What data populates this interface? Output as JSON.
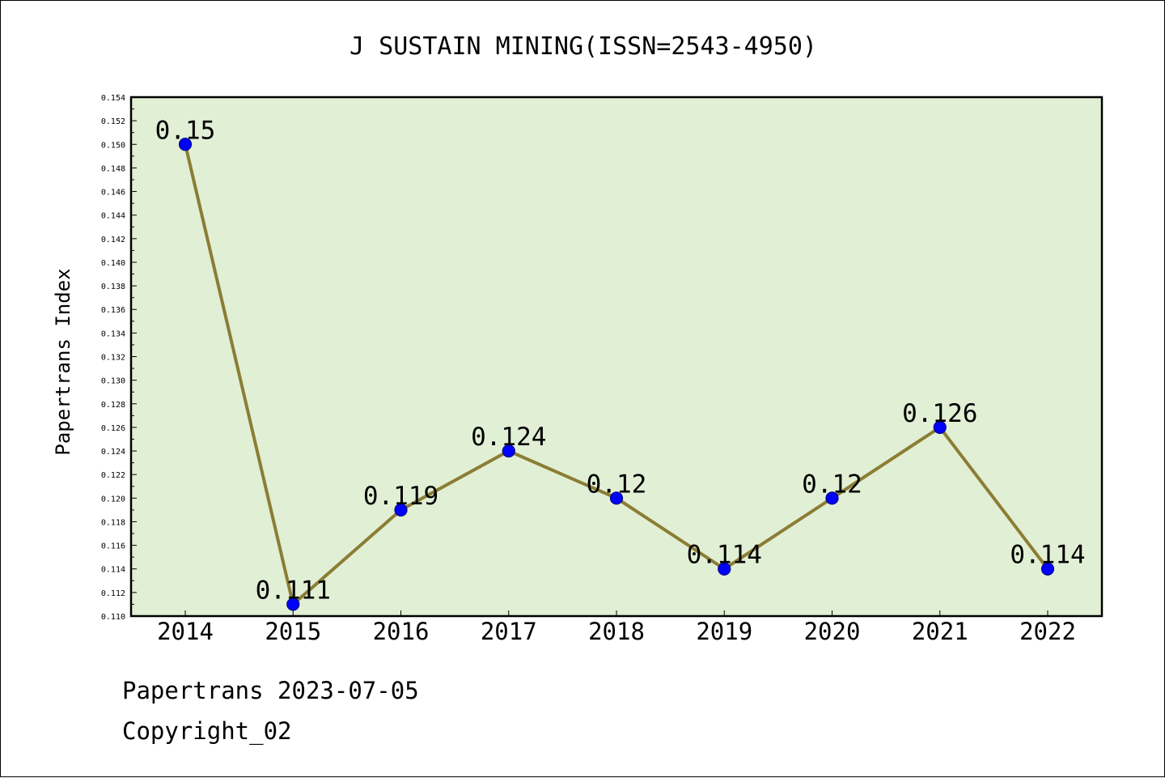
{
  "chart_data": {
    "type": "line",
    "title": "J SUSTAIN MINING(ISSN=2543-4950)",
    "xlabel": "",
    "ylabel": "Papertrans Index",
    "categories": [
      "2014",
      "2015",
      "2016",
      "2017",
      "2018",
      "2019",
      "2020",
      "2021",
      "2022"
    ],
    "series": [
      {
        "values": [
          0.15,
          0.111,
          0.119,
          0.124,
          0.12,
          0.114,
          0.12,
          0.126,
          0.114
        ],
        "data_labels": [
          "0.15",
          "0.111",
          "0.119",
          "0.124",
          "0.12",
          "0.114",
          "0.12",
          "0.126",
          "0.114"
        ]
      }
    ],
    "ylim": [
      0.11,
      0.154
    ],
    "yticks": [
      "0.110",
      "0.112",
      "0.114",
      "0.116",
      "0.118",
      "0.120",
      "0.122",
      "0.124",
      "0.126",
      "0.128",
      "0.130",
      "0.132",
      "0.134",
      "0.136",
      "0.138",
      "0.140",
      "0.142",
      "0.144",
      "0.146",
      "0.148",
      "0.150",
      "0.152",
      "0.154"
    ],
    "grid": false,
    "colors": {
      "plot_background": "#e1efd5",
      "line": "#8b7d34",
      "marker_fill": "#0000ff",
      "marker_edge": "#00008b"
    }
  },
  "footer": {
    "date_line": "Papertrans 2023-07-05",
    "copyright_line": "Copyright_02"
  }
}
